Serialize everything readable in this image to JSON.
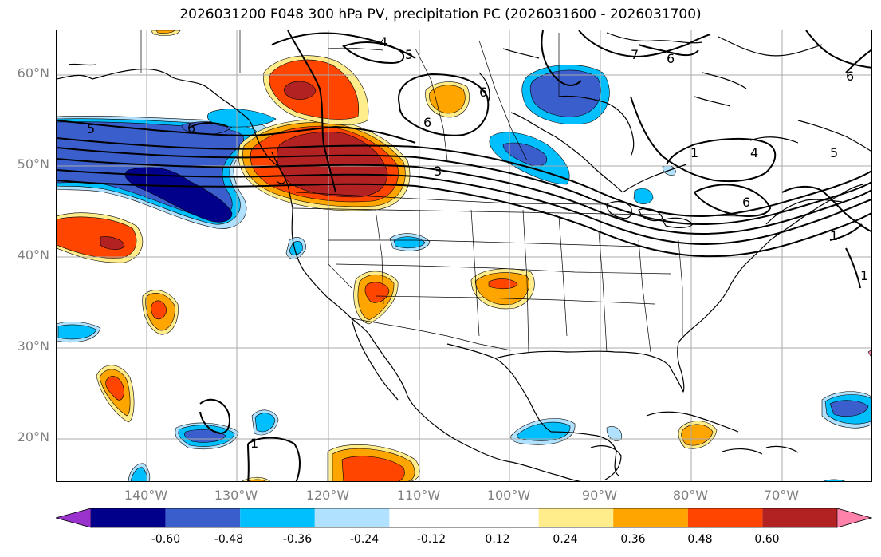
{
  "title": "2026031200 F048 300 hPa PV, precipitation PC (2026031600 - 2026031700)",
  "lat_labels": [
    "60°N",
    "50°N",
    "40°N",
    "30°N",
    "20°N"
  ],
  "lon_labels": [
    "140°W",
    "130°W",
    "120°W",
    "110°W",
    "100°W",
    "90°W",
    "80°W",
    "70°W"
  ],
  "colorbar": {
    "colors": [
      "#9a32cd",
      "#00008b",
      "#3a5fcd",
      "#00bfff",
      "#b0e2ff",
      "#ffffff",
      "#ffffff",
      "#ffec8b",
      "#ffa500",
      "#ff4500",
      "#b22222",
      "#ff82ab"
    ],
    "tick_labels": [
      "-0.60",
      "-0.48",
      "-0.36",
      "-0.24",
      "-0.12",
      "0.12",
      "0.24",
      "0.36",
      "0.48",
      "0.60"
    ]
  },
  "contour_labels": [
    "4",
    "5",
    "6",
    "7",
    "6",
    "5",
    "6",
    "3",
    "4",
    "6",
    "1",
    "6",
    "1",
    "5",
    "1",
    "6",
    "1"
  ],
  "colors": {
    "coast": "#000000",
    "grid": "#a9a9a9",
    "contour": "#000000"
  }
}
